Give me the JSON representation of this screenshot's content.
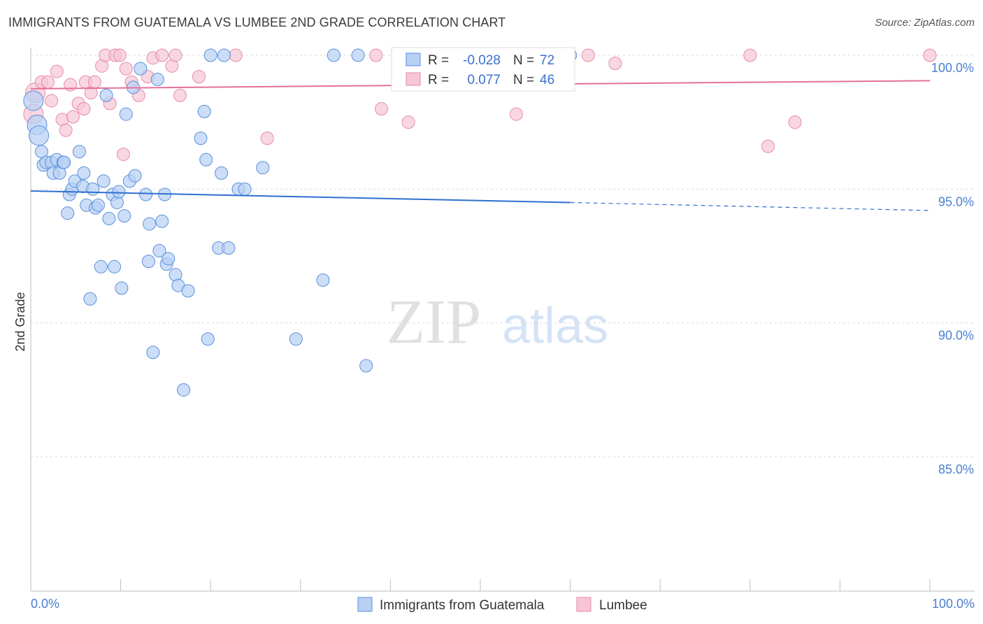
{
  "header": {
    "title": "IMMIGRANTS FROM GUATEMALA VS LUMBEE 2ND GRADE CORRELATION CHART",
    "source": "Source: ZipAtlas.com"
  },
  "watermark": {
    "zip": "ZIP",
    "atlas": "atlas"
  },
  "colors": {
    "blue_fill": "#b7d0f3",
    "blue_stroke": "#5a8fdc",
    "blue_line": "#2e6fcf",
    "pink_fill": "#f7c6d5",
    "pink_stroke": "#e68aa6",
    "pink_line": "#e4709a",
    "tick_text": "#4a7fd1",
    "grid": "#d8d8d8"
  },
  "stats_box": {
    "rows": [
      {
        "r_label": "R =",
        "r_value": "-0.028",
        "n_label": "N =",
        "n_value": "72",
        "series": "blue"
      },
      {
        "r_label": "R =",
        "r_value": "0.077",
        "n_label": "N =",
        "n_value": "46",
        "series": "pink"
      }
    ]
  },
  "legend": {
    "items": [
      {
        "label": "Immigrants from Guatemala",
        "series": "blue"
      },
      {
        "label": "Lumbee",
        "series": "pink"
      }
    ]
  },
  "chart_data": {
    "type": "scatter",
    "title": "IMMIGRANTS FROM GUATEMALA VS LUMBEE 2ND GRADE CORRELATION CHART",
    "xlabel": "",
    "ylabel": "2nd Grade",
    "xlim": [
      0,
      100
    ],
    "ylim": [
      80.5,
      100.4
    ],
    "y_ticks": [
      100,
      95,
      90,
      85
    ],
    "y_tick_labels": [
      "100.0%",
      "95.0%",
      "90.0%",
      "85.0%"
    ],
    "x_tick_labels": [
      "0.0%",
      "100.0%"
    ],
    "legend_position": "bottom-center",
    "series": [
      {
        "name": "Immigrants from Guatemala",
        "color": "blue",
        "trend": {
          "x0": 0,
          "y0": 94.93,
          "x1": 60,
          "y1": 94.5,
          "dash_to_x": 100,
          "dash_to_y": 94.2
        },
        "points": [
          [
            0.3,
            98.3
          ],
          [
            0.7,
            97.4
          ],
          [
            0.9,
            97.0
          ],
          [
            1.2,
            96.4
          ],
          [
            1.4,
            95.9
          ],
          [
            1.7,
            96.0
          ],
          [
            2.3,
            96.0
          ],
          [
            2.5,
            95.6
          ],
          [
            2.9,
            96.1
          ],
          [
            3.2,
            95.6
          ],
          [
            3.6,
            96.0
          ],
          [
            3.7,
            96.0
          ],
          [
            4.1,
            94.1
          ],
          [
            4.3,
            94.8
          ],
          [
            4.6,
            95.0
          ],
          [
            4.9,
            95.3
          ],
          [
            5.4,
            96.4
          ],
          [
            5.8,
            95.1
          ],
          [
            5.9,
            95.6
          ],
          [
            6.2,
            94.4
          ],
          [
            6.6,
            90.9
          ],
          [
            6.9,
            95.0
          ],
          [
            7.2,
            94.3
          ],
          [
            7.5,
            94.4
          ],
          [
            7.8,
            92.1
          ],
          [
            8.1,
            95.3
          ],
          [
            8.4,
            98.5
          ],
          [
            8.7,
            93.9
          ],
          [
            9.1,
            94.8
          ],
          [
            9.3,
            92.1
          ],
          [
            9.6,
            94.5
          ],
          [
            9.8,
            94.9
          ],
          [
            10.1,
            91.3
          ],
          [
            10.4,
            94.0
          ],
          [
            10.6,
            97.8
          ],
          [
            11.0,
            95.3
          ],
          [
            11.4,
            98.8
          ],
          [
            11.6,
            95.5
          ],
          [
            12.2,
            99.5
          ],
          [
            12.8,
            94.8
          ],
          [
            13.1,
            92.3
          ],
          [
            13.2,
            93.7
          ],
          [
            13.6,
            88.9
          ],
          [
            14.1,
            99.1
          ],
          [
            14.3,
            92.7
          ],
          [
            14.6,
            93.8
          ],
          [
            14.9,
            94.8
          ],
          [
            15.1,
            92.2
          ],
          [
            15.3,
            92.4
          ],
          [
            16.1,
            91.8
          ],
          [
            16.4,
            91.4
          ],
          [
            17.0,
            87.5
          ],
          [
            17.5,
            91.2
          ],
          [
            18.9,
            96.9
          ],
          [
            19.3,
            97.9
          ],
          [
            19.5,
            96.1
          ],
          [
            19.7,
            89.4
          ],
          [
            20.0,
            100.0
          ],
          [
            20.9,
            92.8
          ],
          [
            21.2,
            95.6
          ],
          [
            21.5,
            100.0
          ],
          [
            22.0,
            92.8
          ],
          [
            23.1,
            95.0
          ],
          [
            23.8,
            95.0
          ],
          [
            25.8,
            95.8
          ],
          [
            29.5,
            89.4
          ],
          [
            32.5,
            91.6
          ],
          [
            33.7,
            100.0
          ],
          [
            36.4,
            100.0
          ],
          [
            37.3,
            88.4
          ],
          [
            60.0,
            100.0
          ]
        ]
      },
      {
        "name": "Lumbee",
        "color": "pink",
        "trend": {
          "x0": 0,
          "y0": 98.75,
          "x1": 100,
          "y1": 99.05
        },
        "points": [
          [
            0.3,
            97.8
          ],
          [
            0.5,
            98.6
          ],
          [
            1.2,
            99.0
          ],
          [
            1.9,
            99.0
          ],
          [
            2.3,
            98.3
          ],
          [
            2.9,
            99.4
          ],
          [
            3.5,
            97.6
          ],
          [
            3.9,
            97.2
          ],
          [
            4.4,
            98.9
          ],
          [
            4.7,
            97.7
          ],
          [
            5.3,
            98.2
          ],
          [
            5.9,
            98.0
          ],
          [
            6.1,
            99.0
          ],
          [
            6.7,
            98.6
          ],
          [
            7.1,
            99.0
          ],
          [
            7.9,
            99.6
          ],
          [
            8.3,
            100.0
          ],
          [
            8.8,
            98.2
          ],
          [
            9.4,
            100.0
          ],
          [
            9.9,
            100.0
          ],
          [
            10.3,
            96.3
          ],
          [
            10.6,
            99.5
          ],
          [
            11.2,
            99.0
          ],
          [
            12.0,
            98.5
          ],
          [
            13.0,
            99.2
          ],
          [
            13.6,
            99.9
          ],
          [
            14.6,
            100.0
          ],
          [
            15.7,
            99.6
          ],
          [
            16.1,
            100.0
          ],
          [
            16.6,
            98.5
          ],
          [
            18.7,
            99.2
          ],
          [
            22.8,
            100.0
          ],
          [
            26.3,
            96.9
          ],
          [
            38.4,
            100.0
          ],
          [
            39.0,
            98.0
          ],
          [
            42.0,
            97.5
          ],
          [
            54.0,
            97.8
          ],
          [
            62.0,
            100.0
          ],
          [
            65.0,
            99.7
          ],
          [
            80.0,
            100.0
          ],
          [
            82.0,
            96.6
          ],
          [
            85.0,
            97.5
          ],
          [
            100.0,
            100.0
          ]
        ]
      }
    ]
  }
}
